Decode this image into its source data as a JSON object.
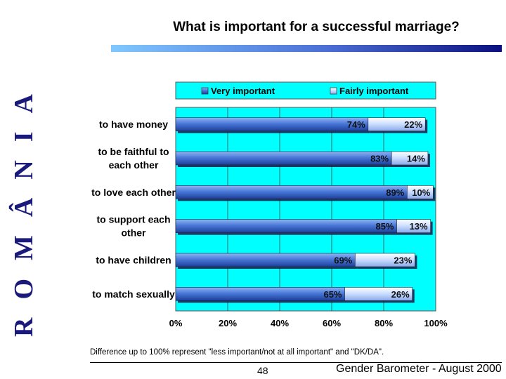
{
  "side_title": "ROMÂNIA",
  "footnote": "Difference up to 100% represent \"less important/not at all important\" and \"DK/DA\".",
  "page_number": "48",
  "footer_source": "Gender Barometer - August 2000",
  "colors": {
    "plot_background": "#00ffff",
    "very_important": "#4a78d8",
    "fairly_important": "#c9dcff",
    "side_title": "#1a1a7a"
  },
  "chart_data": {
    "type": "bar",
    "orientation": "horizontal",
    "stacked": true,
    "title": "What is important for a successful marriage?",
    "categories": [
      [
        "to have money"
      ],
      [
        "to be faithful to",
        "each other"
      ],
      [
        "to love each other"
      ],
      [
        "to support each",
        "other"
      ],
      [
        "to have children"
      ],
      [
        "to match sexually"
      ]
    ],
    "series": [
      {
        "name": "Very important",
        "values": [
          74,
          83,
          89,
          85,
          69,
          65
        ],
        "labels": [
          "74%",
          "83%",
          "89%",
          "85%",
          "69%",
          "65%"
        ]
      },
      {
        "name": "Fairly important",
        "values": [
          22,
          14,
          10,
          13,
          23,
          26
        ],
        "labels": [
          "22%",
          "14%",
          "10%",
          "13%",
          "23%",
          "26%"
        ]
      }
    ],
    "xlim": [
      0,
      100
    ],
    "xticks": [
      "0%",
      "20%",
      "40%",
      "60%",
      "80%",
      "100%"
    ],
    "legend_position": "top",
    "grid": "vertical"
  }
}
